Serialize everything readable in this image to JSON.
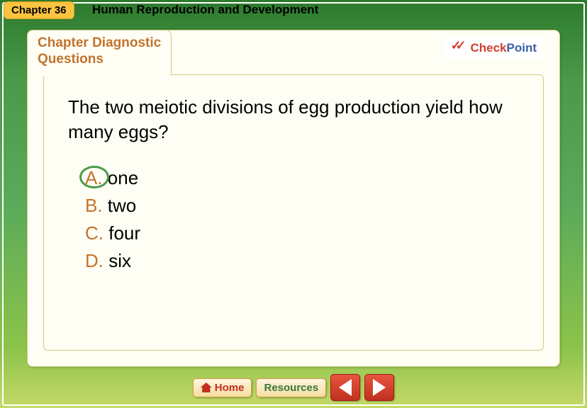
{
  "chapter": {
    "label": "Chapter 36",
    "title": "Human Reproduction and Development"
  },
  "tab": {
    "line1": "Chapter Diagnostic",
    "line2": "Questions"
  },
  "checkpoint": {
    "part1": "Check",
    "part2": "Point"
  },
  "question": "The two meiotic divisions of egg production yield how many eggs?",
  "answers": [
    {
      "letter": "A.",
      "text": " one",
      "circled": true
    },
    {
      "letter": "B.",
      "text": " two",
      "circled": false
    },
    {
      "letter": "C.",
      "text": " four",
      "circled": false
    },
    {
      "letter": "D.",
      "text": " six",
      "circled": false
    }
  ],
  "nav": {
    "home": "Home",
    "resources": "Resources"
  },
  "colors": {
    "accent_orange": "#c2732d",
    "circle_green": "#4a9a4a",
    "check_red": "#d04030",
    "check_blue": "#3a5fa8",
    "panel_bg": "#fffef4",
    "panel_border": "#d4c880"
  }
}
